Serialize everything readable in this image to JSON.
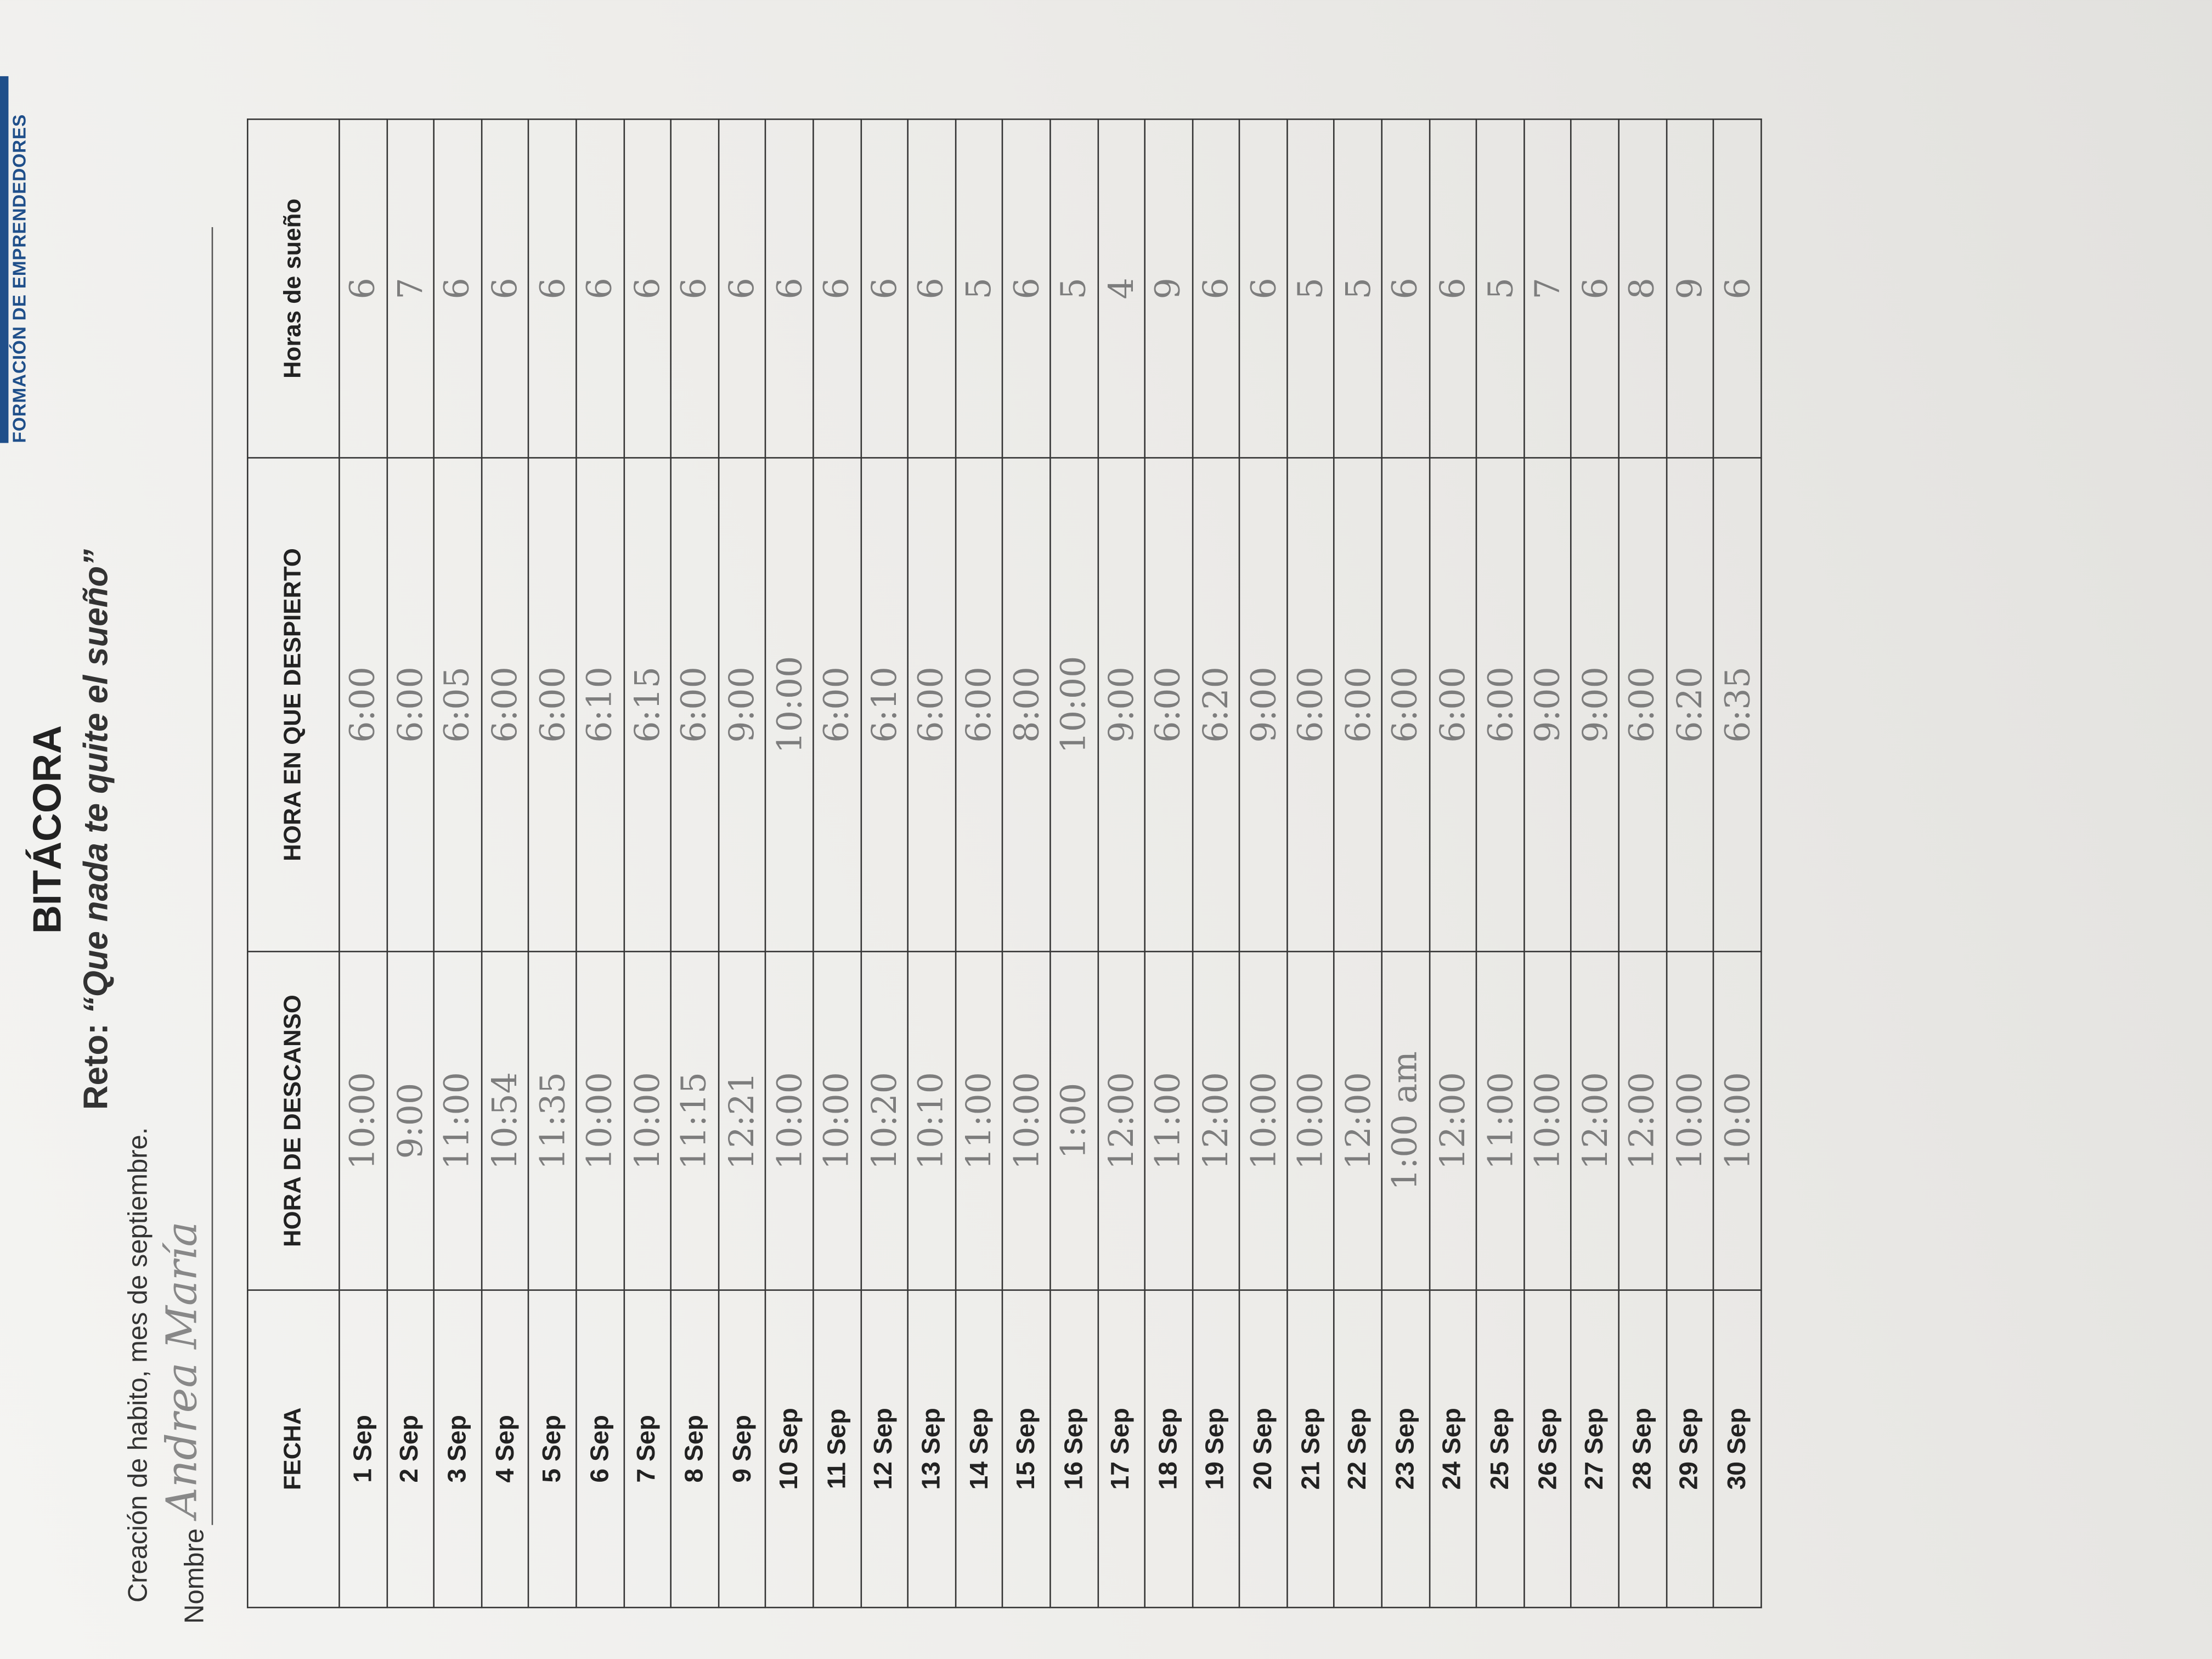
{
  "logo": {
    "text": "FORMACIÓN DE EMPRENDEDORES"
  },
  "header": {
    "title": "BITÁCORA",
    "reto_label": "Reto:",
    "reto_text": "“Que nada te quite el sueño”",
    "subtitle": "Creación de habito, mes de septiembre.",
    "name_label": "Nombre",
    "name": "Andrea María"
  },
  "table": {
    "headers": [
      "FECHA",
      "HORA DE DESCANSO",
      "HORA EN QUE DESPIERTO",
      "Horas de sueño"
    ],
    "rows": [
      [
        "1 Sep",
        "10:00",
        "6:00",
        "6"
      ],
      [
        "2 Sep",
        "9:00",
        "6:00",
        "7"
      ],
      [
        "3 Sep",
        "11:00",
        "6:05",
        "6"
      ],
      [
        "4 Sep",
        "10:54",
        "6:00",
        "6"
      ],
      [
        "5 Sep",
        "11:35",
        "6:00",
        "6"
      ],
      [
        "6 Sep",
        "10:00",
        "6:10",
        "6"
      ],
      [
        "7 Sep",
        "10:00",
        "6:15",
        "6"
      ],
      [
        "8 Sep",
        "11:15",
        "6:00",
        "6"
      ],
      [
        "9 Sep",
        "12:21",
        "9:00",
        "6"
      ],
      [
        "10 Sep",
        "10:00",
        "10:00",
        "6"
      ],
      [
        "11 Sep",
        "10:00",
        "6:00",
        "6"
      ],
      [
        "12 Sep",
        "10:20",
        "6:10",
        "6"
      ],
      [
        "13 Sep",
        "10:10",
        "6:00",
        "6"
      ],
      [
        "14 Sep",
        "11:00",
        "6:00",
        "5"
      ],
      [
        "15 Sep",
        "10:00",
        "8:00",
        "6"
      ],
      [
        "16 Sep",
        "1:00",
        "10:00",
        "5"
      ],
      [
        "17 Sep",
        "12:00",
        "9:00",
        "4"
      ],
      [
        "18 Sep",
        "11:00",
        "6:00",
        "9"
      ],
      [
        "19 Sep",
        "12:00",
        "6:20",
        "6"
      ],
      [
        "20 Sep",
        "10:00",
        "9:00",
        "6"
      ],
      [
        "21 Sep",
        "10:00",
        "6:00",
        "5"
      ],
      [
        "22 Sep",
        "12:00",
        "6:00",
        "5"
      ],
      [
        "23 Sep",
        "1:00 am",
        "6:00",
        "6"
      ],
      [
        "24 Sep",
        "12:00",
        "6:00",
        "6"
      ],
      [
        "25 Sep",
        "11:00",
        "6:00",
        "5"
      ],
      [
        "26 Sep",
        "10:00",
        "9:00",
        "7"
      ],
      [
        "27 Sep",
        "12:00",
        "9:00",
        "6"
      ],
      [
        "28 Sep",
        "12:00",
        "6:00",
        "8"
      ],
      [
        "29 Sep",
        "10:00",
        "6:20",
        "9"
      ],
      [
        "30 Sep",
        "10:00",
        "6:35",
        "6"
      ]
    ]
  }
}
